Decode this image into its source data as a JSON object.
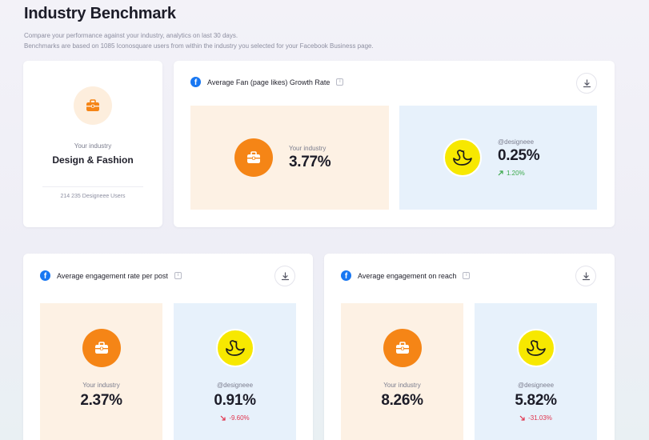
{
  "header": {
    "title": "Industry Benchmark",
    "subtitle_line1": "Compare your performance against your industry, analytics on last 30 days.",
    "subtitle_line2": "Benchmarks are based on 1085 Iconosquare users from within the industry you selected for your Facebook Business page."
  },
  "industry_card": {
    "icon": "briefcase-icon",
    "label": "Your industry",
    "name": "Design & Fashion",
    "users": "214 235 Designeee Users"
  },
  "fan_growth": {
    "title": "Average Fan (page likes) Growth Rate",
    "industry_label": "Your industry",
    "industry_value": "3.77%",
    "account_label": "@designeee",
    "account_value": "0.25%",
    "delta": "1.20%",
    "delta_direction": "up"
  },
  "engagement_post": {
    "title": "Average engagement rate per post",
    "industry_label": "Your industry",
    "industry_value": "2.37%",
    "account_label": "@designeee",
    "account_value": "0.91%",
    "delta": "-9.60%",
    "delta_direction": "down"
  },
  "engagement_reach": {
    "title": "Average engagement on reach",
    "industry_label": "Your industry",
    "industry_value": "8.26%",
    "account_label": "@designeee",
    "account_value": "5.82%",
    "delta": "-31.03%",
    "delta_direction": "down"
  },
  "colors": {
    "accent_orange": "#f58516",
    "tile_orange": "#fdf1e4",
    "tile_blue": "#e7f1fb",
    "facebook_blue": "#1877f2",
    "avatar_yellow": "#f7e800",
    "positive": "#3aa84a",
    "negative": "#e0334d"
  }
}
